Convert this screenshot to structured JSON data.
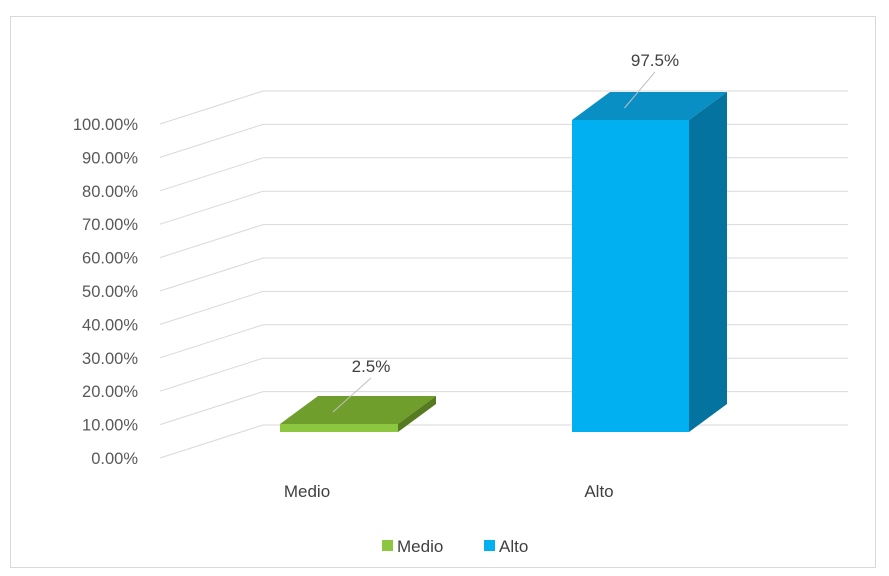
{
  "chart_data": {
    "type": "bar",
    "categories": [
      "Medio",
      "Alto"
    ],
    "values": [
      2.5,
      97.5
    ],
    "data_labels": [
      "2.5%",
      "97.5%"
    ],
    "yticks": [
      "0.00%",
      "10.00%",
      "20.00%",
      "30.00%",
      "40.00%",
      "50.00%",
      "60.00%",
      "70.00%",
      "80.00%",
      "90.00%",
      "100.00%"
    ],
    "ylim": [
      0,
      100
    ],
    "grid": true,
    "legend": {
      "placement": "bottom",
      "entries": [
        {
          "label": "Medio",
          "color": "#8dc63f"
        },
        {
          "label": "Alto",
          "color": "#00b0f0"
        }
      ]
    },
    "colors": {
      "medio_front": "#8dc63f",
      "medio_top": "#6f9e2c",
      "medio_side": "#557a20",
      "alto_front": "#00b0f0",
      "alto_top": "#0a8fc4",
      "alto_side": "#0473a0",
      "grid": "#d9d9d9"
    }
  }
}
